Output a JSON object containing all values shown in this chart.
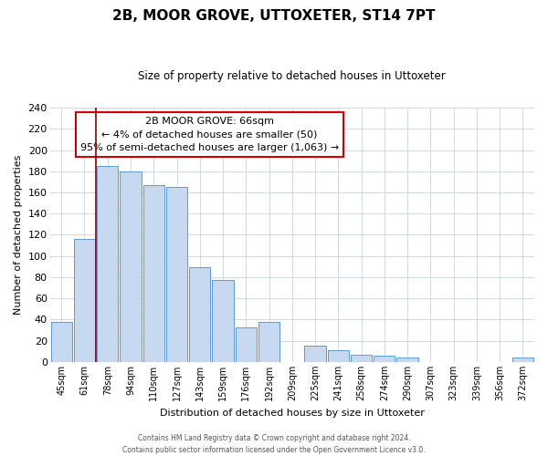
{
  "title": "2B, MOOR GROVE, UTTOXETER, ST14 7PT",
  "subtitle": "Size of property relative to detached houses in Uttoxeter",
  "xlabel": "Distribution of detached houses by size in Uttoxeter",
  "ylabel": "Number of detached properties",
  "bar_labels": [
    "45sqm",
    "61sqm",
    "78sqm",
    "94sqm",
    "110sqm",
    "127sqm",
    "143sqm",
    "159sqm",
    "176sqm",
    "192sqm",
    "209sqm",
    "225sqm",
    "241sqm",
    "258sqm",
    "274sqm",
    "290sqm",
    "307sqm",
    "323sqm",
    "339sqm",
    "356sqm",
    "372sqm"
  ],
  "bar_values": [
    38,
    116,
    185,
    180,
    167,
    165,
    89,
    77,
    33,
    38,
    0,
    15,
    11,
    7,
    6,
    4,
    0,
    0,
    0,
    0,
    4
  ],
  "bar_color": "#c6d9f0",
  "bar_edge_color": "#5b9bd5",
  "ylim": [
    0,
    240
  ],
  "yticks": [
    0,
    20,
    40,
    60,
    80,
    100,
    120,
    140,
    160,
    180,
    200,
    220,
    240
  ],
  "property_line_x": 1.5,
  "property_line_color": "#8b0000",
  "annotation_title": "2B MOOR GROVE: 66sqm",
  "annotation_line1": "← 4% of detached houses are smaller (50)",
  "annotation_line2": "95% of semi-detached houses are larger (1,063) →",
  "annotation_box_color": "#ffffff",
  "annotation_box_edge_color": "#cc0000",
  "footer_line1": "Contains HM Land Registry data © Crown copyright and database right 2024.",
  "footer_line2": "Contains public sector information licensed under the Open Government Licence v3.0.",
  "background_color": "#ffffff",
  "grid_color": "#d0d8e4"
}
